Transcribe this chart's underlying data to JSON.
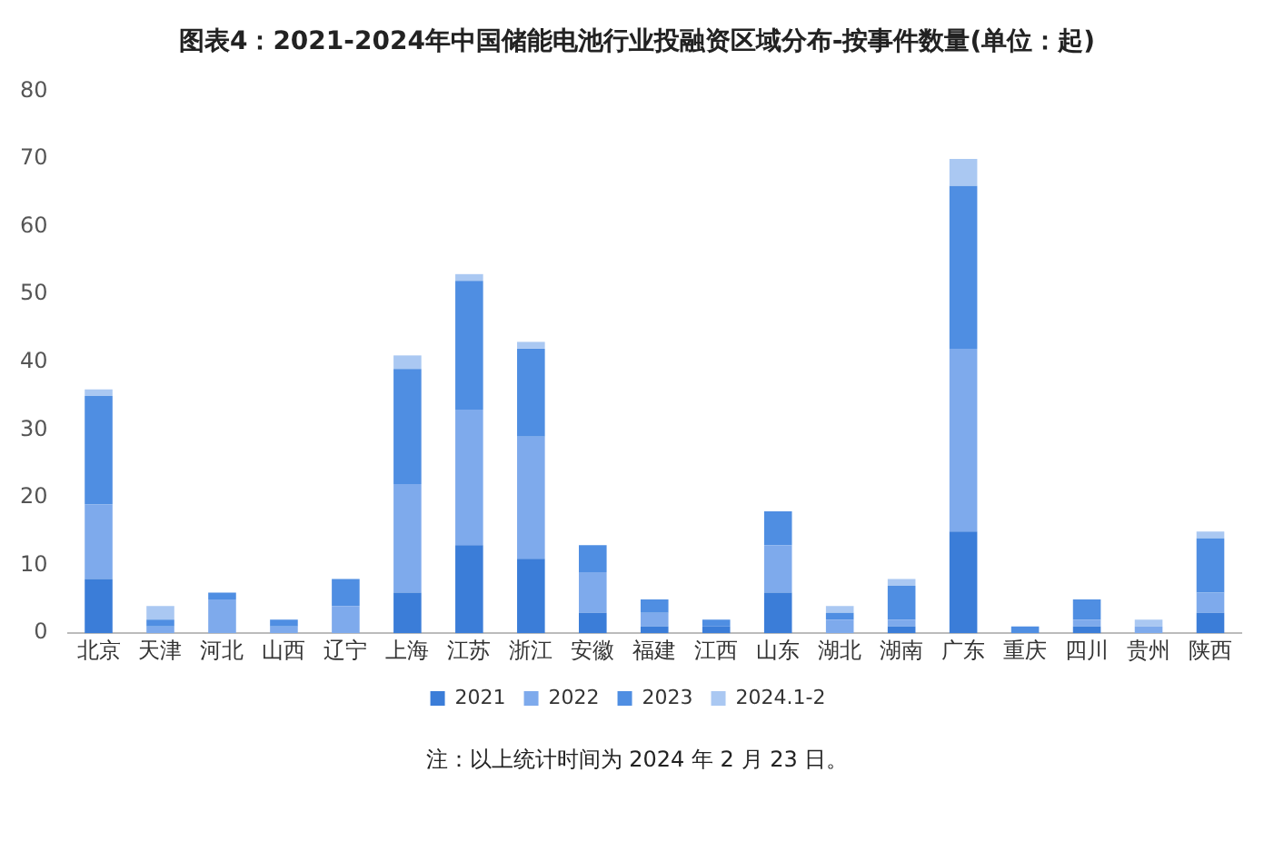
{
  "chart_data": {
    "type": "bar",
    "stacked": true,
    "title": "图表4：2021-2024年中国储能电池行业投融资区域分布-按事件数量(单位：起)",
    "categories": [
      "北京",
      "天津",
      "河北",
      "山西",
      "辽宁",
      "上海",
      "江苏",
      "浙江",
      "安徽",
      "福建",
      "江西",
      "山东",
      "湖北",
      "湖南",
      "广东",
      "重庆",
      "四川",
      "贵州",
      "陕西"
    ],
    "series": [
      {
        "name": "2021",
        "color": "#3b7dd8",
        "values": [
          8,
          0,
          0,
          0,
          0,
          6,
          13,
          11,
          3,
          1,
          1,
          6,
          0,
          1,
          15,
          0,
          1,
          0,
          3
        ]
      },
      {
        "name": "2022",
        "color": "#7eaaec",
        "values": [
          11,
          1,
          5,
          1,
          4,
          16,
          20,
          18,
          6,
          2,
          0,
          7,
          2,
          1,
          27,
          0,
          1,
          1,
          3
        ]
      },
      {
        "name": "2023",
        "color": "#4f8ee2",
        "values": [
          16,
          1,
          1,
          1,
          4,
          17,
          19,
          13,
          4,
          2,
          1,
          5,
          1,
          5,
          24,
          1,
          3,
          0,
          8
        ]
      },
      {
        "name": "2024.1-2",
        "color": "#aac8f2",
        "values": [
          1,
          2,
          0,
          0,
          0,
          2,
          1,
          1,
          0,
          0,
          0,
          0,
          1,
          1,
          4,
          0,
          0,
          1,
          1
        ]
      }
    ],
    "ylim": [
      0,
      80
    ],
    "yticks": [
      0,
      10,
      20,
      30,
      40,
      50,
      60,
      70,
      80
    ],
    "grid": false,
    "legend": "bottom",
    "annotations": [
      "注：以上统计时间为 2024 年 2 月 23 日。"
    ]
  }
}
